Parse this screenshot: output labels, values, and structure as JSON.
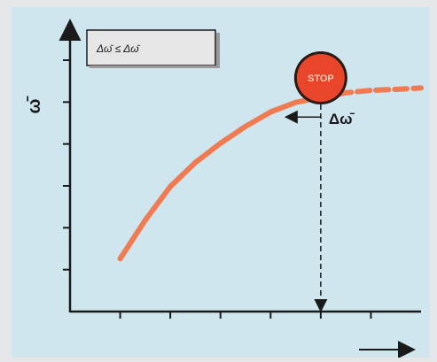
{
  "chart_data": {
    "type": "line",
    "title": "",
    "ylabel": "ω̄",
    "xlabel": "",
    "legend_text": "Δω̄ ≤ Δω̄",
    "stop_sign_text": "STOP",
    "delta_label": "Δω̄",
    "x_ticks": 6,
    "y_ticks": 6,
    "series": [
      {
        "values": [
          {
            "x": 1.0,
            "y": 1.1
          },
          {
            "x": 1.5,
            "y": 1.9
          },
          {
            "x": 2.0,
            "y": 2.6
          },
          {
            "x": 2.5,
            "y": 3.1
          },
          {
            "x": 3.0,
            "y": 3.5
          },
          {
            "x": 3.5,
            "y": 3.85
          },
          {
            "x": 4.0,
            "y": 4.15
          },
          {
            "x": 4.5,
            "y": 4.35
          },
          {
            "x": 5.0,
            "y": 4.45
          },
          {
            "x": 5.5,
            "y": 4.55
          },
          {
            "x": 6.0,
            "y": 4.6
          },
          {
            "x": 6.5,
            "y": 4.62
          },
          {
            "x": 7.0,
            "y": 4.65
          }
        ],
        "dashed_after_x": 5.0
      }
    ],
    "stop_x": 5.0,
    "xlim": [
      0,
      7
    ],
    "ylim": [
      0,
      6
    ],
    "grid": false,
    "colors": {
      "background": "#cfe6ee",
      "curve": "#f07a52",
      "axis": "#1a1a1a",
      "stop_sign": "#e8452a",
      "legend_box": "#e6e6e6"
    }
  }
}
